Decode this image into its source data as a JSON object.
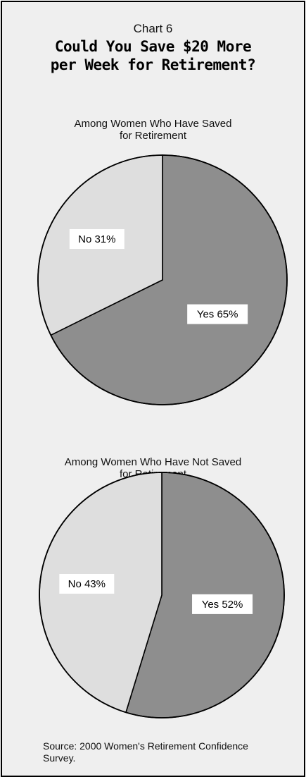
{
  "chart_number": "Chart 6",
  "title_line1": "Could You Save $20 More",
  "title_line2": "per Week for Retirement?",
  "chart_data": [
    {
      "type": "pie",
      "title_line1": "Among Women Who Have Saved",
      "title_line2": "for Retirement",
      "slices": [
        {
          "label": "Yes",
          "value": 65,
          "display": "Yes  65%",
          "color": "#8e8e8e"
        },
        {
          "label": "No",
          "value": 31,
          "display": "No  31%",
          "color": "#dedede"
        }
      ]
    },
    {
      "type": "pie",
      "title_line1": "Among Women Who Have Not Saved",
      "title_line2": "for Retirement",
      "slices": [
        {
          "label": "Yes",
          "value": 52,
          "display": "Yes  52%",
          "color": "#8e8e8e"
        },
        {
          "label": "No",
          "value": 43,
          "display": "No  43%",
          "color": "#dedede"
        }
      ]
    }
  ],
  "source_line1": "Source:  2000 Women's Retirement Confidence",
  "source_line2": "Survey."
}
